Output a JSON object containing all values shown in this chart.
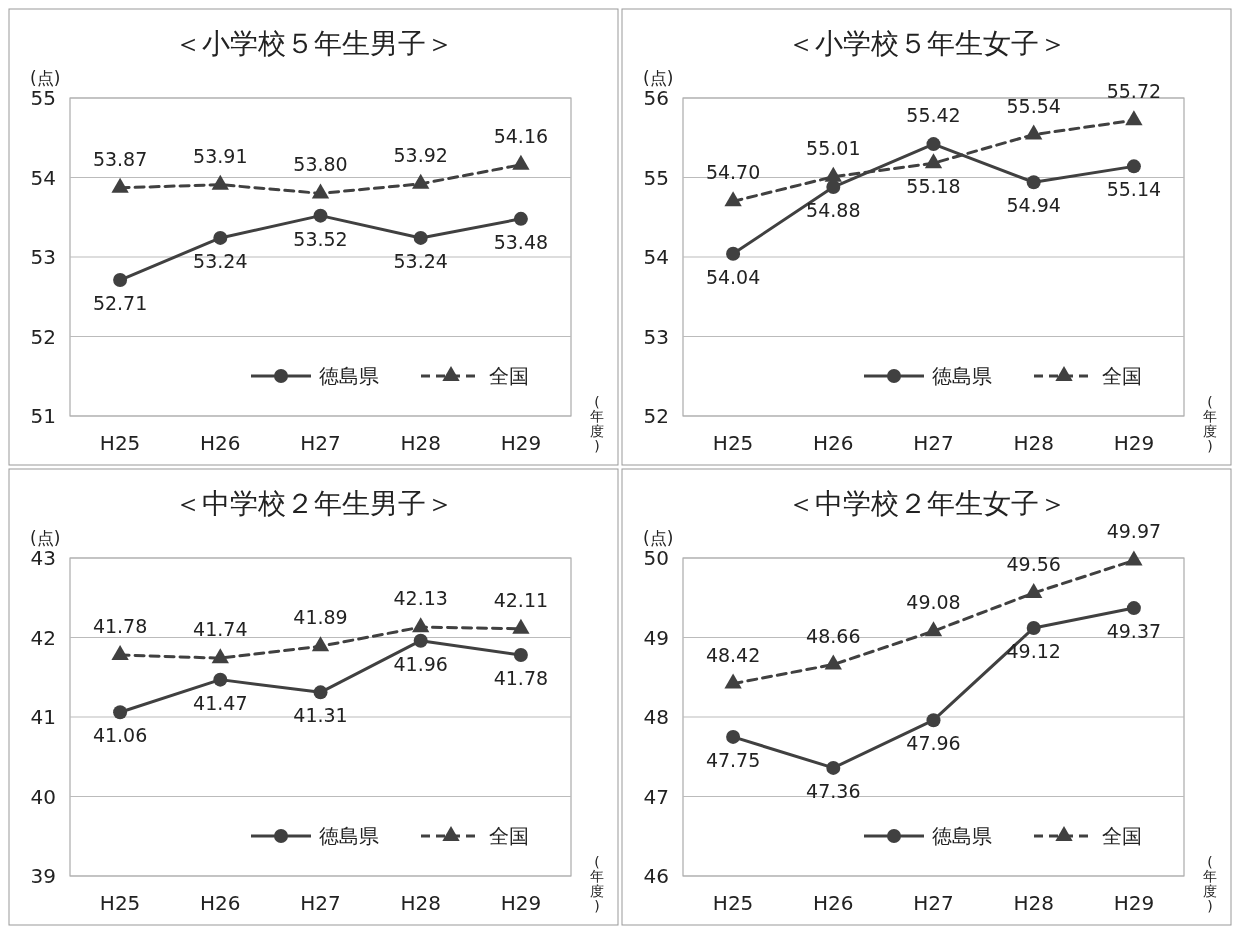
{
  "chart_data": [
    {
      "type": "line",
      "title": "＜小学校５年生男子＞",
      "ylabel": "(点)",
      "xlabel": "(年度)",
      "categories": [
        "H25",
        "H26",
        "H27",
        "H28",
        "H29"
      ],
      "ylim": [
        51,
        55
      ],
      "yticks": [
        51,
        52,
        53,
        54,
        55
      ],
      "grid": "y",
      "legend": "bottom right",
      "series": [
        {
          "name": "徳島県",
          "color": "#404040",
          "marker": "circle",
          "line_style": "solid",
          "values": [
            52.71,
            53.24,
            53.52,
            53.24,
            53.48
          ],
          "value_labels": [
            "52.71",
            "53.24",
            "53.52",
            "53.24",
            "53.48"
          ]
        },
        {
          "name": "全国",
          "color": "#404040",
          "marker": "triangle",
          "line_style": "dashed",
          "values": [
            53.87,
            53.91,
            53.8,
            53.92,
            54.16
          ],
          "value_labels": [
            "53.87",
            "53.91",
            "53.80",
            "53.92",
            "54.16"
          ]
        }
      ]
    },
    {
      "type": "line",
      "title": "＜小学校５年生女子＞",
      "ylabel": "(点)",
      "xlabel": "(年度)",
      "categories": [
        "H25",
        "H26",
        "H27",
        "H28",
        "H29"
      ],
      "ylim": [
        52,
        56
      ],
      "yticks": [
        52,
        53,
        54,
        55,
        56
      ],
      "grid": "y",
      "legend": "bottom right",
      "series": [
        {
          "name": "徳島県",
          "color": "#404040",
          "marker": "circle",
          "line_style": "solid",
          "values": [
            54.04,
            54.88,
            55.42,
            54.94,
            55.14
          ],
          "value_labels": [
            "54.04",
            "54.88",
            "55.42",
            "54.94",
            "55.14"
          ]
        },
        {
          "name": "全国",
          "color": "#404040",
          "marker": "triangle",
          "line_style": "dashed",
          "values": [
            54.7,
            55.01,
            55.18,
            55.54,
            55.72
          ],
          "value_labels": [
            "54.70",
            "55.01",
            "55.18",
            "55.54",
            "55.72"
          ]
        }
      ]
    },
    {
      "type": "line",
      "title": "＜中学校２年生男子＞",
      "ylabel": "(点)",
      "xlabel": "(年度)",
      "categories": [
        "H25",
        "H26",
        "H27",
        "H28",
        "H29"
      ],
      "ylim": [
        39,
        43
      ],
      "yticks": [
        39,
        40,
        41,
        42,
        43
      ],
      "grid": "y",
      "legend": "bottom right",
      "series": [
        {
          "name": "徳島県",
          "color": "#404040",
          "marker": "circle",
          "line_style": "solid",
          "values": [
            41.06,
            41.47,
            41.31,
            41.96,
            41.78
          ],
          "value_labels": [
            "41.06",
            "41.47",
            "41.31",
            "41.96",
            "41.78"
          ]
        },
        {
          "name": "全国",
          "color": "#404040",
          "marker": "triangle",
          "line_style": "dashed",
          "values": [
            41.78,
            41.74,
            41.89,
            42.13,
            42.11
          ],
          "value_labels": [
            "41.78",
            "41.74",
            "41.89",
            "42.13",
            "42.11"
          ]
        }
      ]
    },
    {
      "type": "line",
      "title": "＜中学校２年生女子＞",
      "ylabel": "(点)",
      "xlabel": "(年度)",
      "categories": [
        "H25",
        "H26",
        "H27",
        "H28",
        "H29"
      ],
      "ylim": [
        46,
        50
      ],
      "yticks": [
        46,
        47,
        48,
        49,
        50
      ],
      "grid": "y",
      "legend": "bottom right",
      "series": [
        {
          "name": "徳島県",
          "color": "#404040",
          "marker": "circle",
          "line_style": "solid",
          "values": [
            47.75,
            47.36,
            47.96,
            49.12,
            49.37
          ],
          "value_labels": [
            "47.75",
            "47.36",
            "47.96",
            "49.12",
            "49.37"
          ]
        },
        {
          "name": "全国",
          "color": "#404040",
          "marker": "triangle",
          "line_style": "dashed",
          "values": [
            48.42,
            48.66,
            49.08,
            49.56,
            49.97
          ],
          "value_labels": [
            "48.42",
            "48.66",
            "49.08",
            "49.56",
            "49.97"
          ]
        }
      ]
    }
  ]
}
